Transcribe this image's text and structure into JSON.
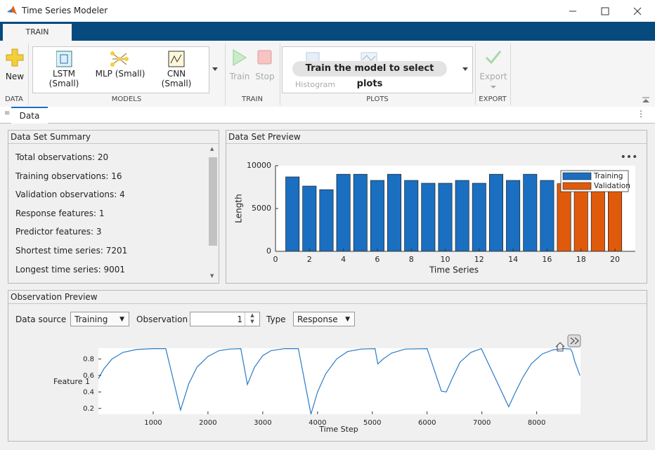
{
  "window": {
    "title": "Time Series Modeler"
  },
  "toolstrip": {
    "tab": "TRAIN",
    "new": "New",
    "models": [
      "LSTM (Small)",
      "MLP (Small)",
      "CNN (Small)"
    ],
    "train": "Train",
    "stop": "Stop",
    "plots_hint": "Train the model to select plots",
    "histogram": "Histogram",
    "export": "Export",
    "sections": [
      "DATA",
      "MODELS",
      "TRAIN",
      "PLOTS",
      "EXPORT"
    ]
  },
  "document_tab": "Data",
  "summary": {
    "title": "Data Set Summary",
    "lines": [
      "Total observations: 20",
      "Training observations: 16",
      "Validation observations: 4",
      "Response features: 1",
      "Predictor features: 3",
      "Shortest time series: 7201",
      "Longest time series: 9001"
    ]
  },
  "preview": {
    "title": "Data Set Preview"
  },
  "observation": {
    "title": "Observation Preview",
    "data_source_label": "Data source",
    "data_source": "Training",
    "observation_label": "Observation",
    "observation": "1",
    "type_label": "Type",
    "type": "Response"
  },
  "chart_data": [
    {
      "type": "bar",
      "xlabel": "Time Series",
      "ylabel": "Length",
      "xlim": [
        0,
        21.2
      ],
      "ylim": [
        0,
        10000
      ],
      "xticks": [
        0,
        2,
        4,
        6,
        8,
        10,
        12,
        14,
        16,
        18,
        20
      ],
      "yticks": [
        0,
        5000,
        10000
      ],
      "legend": "upper right",
      "series": [
        {
          "name": "Training",
          "color": "#1a6fc0",
          "x": [
            1,
            2,
            3,
            4,
            5,
            6,
            7,
            8,
            9,
            10,
            11,
            12,
            13,
            14,
            15,
            16
          ],
          "values": [
            8690,
            7620,
            7201,
            9000,
            9000,
            8280,
            9001,
            8280,
            7950,
            7950,
            8280,
            7950,
            9000,
            8280,
            9000,
            8280
          ]
        },
        {
          "name": "Validation",
          "color": "#e05a0c",
          "x": [
            17,
            18,
            19,
            20
          ],
          "values": [
            7900,
            7900,
            7900,
            7900
          ]
        }
      ]
    },
    {
      "type": "line",
      "xlabel": "Time Step",
      "ylabel": "Feature 1",
      "xlim": [
        0,
        8800
      ],
      "ylim": [
        0.13,
        0.93
      ],
      "xticks": [
        1000,
        2000,
        3000,
        4000,
        5000,
        6000,
        7000,
        8000
      ],
      "yticks": [
        0.2,
        0.4,
        0.6,
        0.8
      ],
      "series": [
        {
          "color": "#2a7bc8",
          "x": [
            0,
            100,
            250,
            450,
            700,
            1000,
            1230,
            1500,
            1650,
            1800,
            2000,
            2200,
            2400,
            2600,
            2720,
            2850,
            3000,
            3150,
            3400,
            3650,
            3880,
            4000,
            4150,
            4350,
            4550,
            4800,
            5050,
            5100,
            5200,
            5350,
            5600,
            6000,
            6260,
            6350,
            6450,
            6600,
            6800,
            6990,
            7490,
            7600,
            7750,
            7900,
            8100,
            8300,
            8500,
            8620,
            8650,
            8700,
            8790
          ],
          "values": [
            0.56,
            0.68,
            0.8,
            0.88,
            0.915,
            0.925,
            0.925,
            0.18,
            0.5,
            0.7,
            0.83,
            0.9,
            0.92,
            0.925,
            0.49,
            0.7,
            0.84,
            0.9,
            0.925,
            0.925,
            0.13,
            0.4,
            0.62,
            0.8,
            0.89,
            0.92,
            0.925,
            0.74,
            0.8,
            0.87,
            0.92,
            0.925,
            0.41,
            0.4,
            0.55,
            0.76,
            0.88,
            0.925,
            0.22,
            0.38,
            0.58,
            0.74,
            0.86,
            0.91,
            0.925,
            0.92,
            0.88,
            0.76,
            0.6
          ]
        }
      ]
    }
  ]
}
